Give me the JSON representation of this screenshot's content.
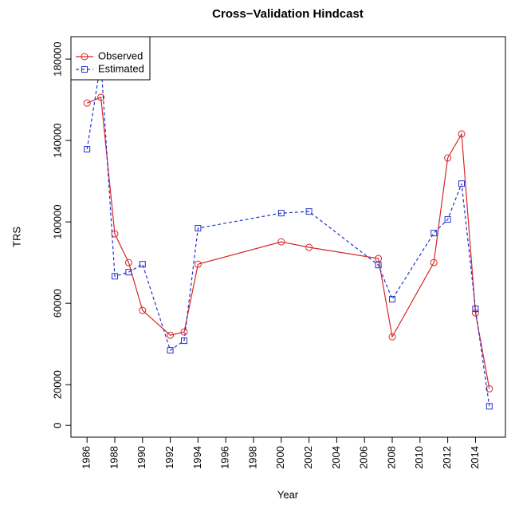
{
  "chart_data": {
    "type": "line",
    "title": "Cross−Validation Hindcast",
    "x_label": "Year",
    "y_label": "TRS",
    "x": [
      1986,
      1987,
      1988,
      1989,
      1990,
      1992,
      1993,
      1994,
      2000,
      2002,
      2007,
      2008,
      2011,
      2012,
      2013,
      2014,
      2015
    ],
    "series": [
      {
        "name": "Observed",
        "color": "#d62728",
        "marker": "circle",
        "dash": "solid",
        "values": [
          158400,
          161200,
          94100,
          80000,
          56500,
          44300,
          45900,
          79200,
          90200,
          87500,
          82000,
          43500,
          80000,
          131400,
          143200,
          55300,
          18000
        ]
      },
      {
        "name": "Estimated",
        "color": "#2233cc",
        "marker": "square",
        "dash": "dashed",
        "values": [
          135700,
          178800,
          73300,
          75300,
          79200,
          36900,
          41600,
          96900,
          104300,
          105100,
          78800,
          62000,
          94500,
          101200,
          118800,
          57300,
          9400
        ]
      }
    ],
    "xlim": [
      1984.84,
      2016.16
    ],
    "xticks": [
      1986,
      1988,
      1990,
      1992,
      1994,
      1996,
      1998,
      2000,
      2002,
      2004,
      2006,
      2008,
      2010,
      2012,
      2014
    ],
    "ylim": [
      -5800,
      191000
    ],
    "yticks": [
      0,
      20000,
      60000,
      100000,
      140000,
      180000
    ],
    "legend": "top-left",
    "grid": false
  }
}
